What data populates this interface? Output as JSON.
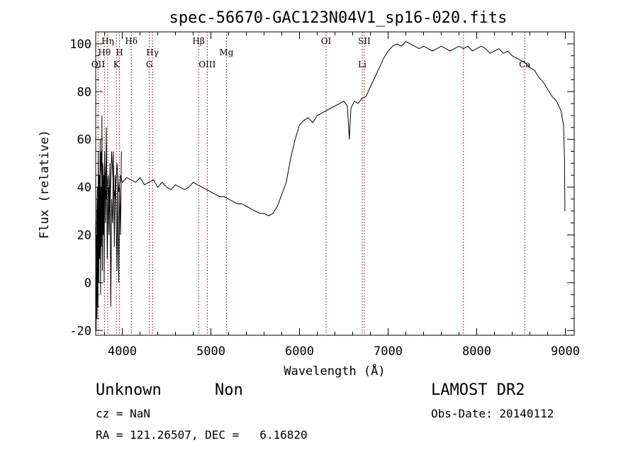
{
  "info": {
    "class_text": "Unknown",
    "subclass_text": "Non",
    "survey_text": "LAMOST DR2",
    "cz_text": "cz = NaN",
    "obs_date_text": "Obs-Date: 20140112",
    "radec_text": "RA = 121.26507, DEC =   6.16820"
  },
  "chart_data": {
    "type": "line",
    "title": "spec-56670-GAC123N04V1_sp16-020.fits",
    "xlabel": "Wavelength (Å)",
    "ylabel": "Flux (relative)",
    "xlim": [
      3700,
      9100
    ],
    "ylim": [
      -22,
      105
    ],
    "xticks": [
      4000,
      5000,
      6000,
      7000,
      8000,
      9000
    ],
    "yticks": [
      -20,
      0,
      20,
      40,
      60,
      80,
      100
    ],
    "grid": false,
    "line_color": "#000000",
    "marker_color": "#8b0000",
    "spectral_lines": [
      {
        "label": "OII",
        "x": 3727,
        "row": 3
      },
      {
        "label": "Hθ",
        "x": 3798,
        "row": 2
      },
      {
        "label": "Hη",
        "x": 3835,
        "row": 1
      },
      {
        "label": "K",
        "x": 3934,
        "row": 3
      },
      {
        "label": "H",
        "x": 3969,
        "row": 2
      },
      {
        "label": "Hδ",
        "x": 4102,
        "row": 1
      },
      {
        "label": "G",
        "x": 4305,
        "row": 3
      },
      {
        "label": "Hγ",
        "x": 4341,
        "row": 2
      },
      {
        "label": "Hβ",
        "x": 4861,
        "row": 1
      },
      {
        "label": "OIII",
        "x": 4959,
        "row": 3
      },
      {
        "label": "Mg",
        "x": 5175,
        "row": 2
      },
      {
        "label": "OI",
        "x": 6300,
        "row": 1
      },
      {
        "label": "Li",
        "x": 6708,
        "row": 3
      },
      {
        "label": "SII",
        "x": 6731,
        "row": 1
      },
      {
        "label": "",
        "x": 7850,
        "row": 0
      },
      {
        "label": "Ca",
        "x": 8542,
        "row": 3
      }
    ],
    "series": [
      {
        "x": [
          3700,
          3720,
          3740,
          3760,
          3780,
          3800,
          3820,
          3840,
          3860,
          3880,
          3900,
          3920,
          3940,
          3960,
          3980,
          4000,
          4050,
          4100,
          4150,
          4200,
          4250,
          4300,
          4350,
          4400,
          4450,
          4500,
          4550,
          4600,
          4650,
          4700,
          4750,
          4800,
          4850,
          4900,
          4950,
          5000,
          5050,
          5100,
          5150,
          5200,
          5250,
          5300,
          5350,
          5400,
          5450,
          5500,
          5550,
          5600,
          5650,
          5700,
          5750,
          5800,
          5850,
          5900,
          5950,
          6000,
          6050,
          6100,
          6150,
          6200,
          6250,
          6300,
          6350,
          6400,
          6450,
          6500,
          6540,
          6562,
          6580,
          6620,
          6660,
          6700,
          6750,
          6800,
          6850,
          6900,
          6950,
          7000,
          7050,
          7100,
          7150,
          7200,
          7250,
          7300,
          7350,
          7400,
          7450,
          7500,
          7550,
          7600,
          7650,
          7700,
          7750,
          7800,
          7850,
          7900,
          7950,
          8000,
          8050,
          8100,
          8150,
          8200,
          8250,
          8300,
          8350,
          8400,
          8450,
          8500,
          8550,
          8600,
          8650,
          8700,
          8750,
          8800,
          8850,
          8900,
          8950,
          8980,
          8990,
          8995
        ],
        "y": [
          10,
          40,
          30,
          55,
          25,
          50,
          35,
          45,
          30,
          55,
          40,
          35,
          50,
          38,
          45,
          42,
          44,
          43,
          42,
          44,
          41,
          42,
          43,
          40,
          42,
          40,
          39,
          41,
          40,
          39,
          40,
          42,
          41,
          40,
          39,
          38,
          37,
          36,
          36,
          35,
          34,
          33,
          33,
          32,
          31,
          30,
          29,
          29,
          28,
          29,
          32,
          37,
          42,
          52,
          60,
          66,
          68,
          69,
          67,
          70,
          71,
          72,
          73,
          74,
          75,
          76,
          74,
          60,
          73,
          76,
          75,
          77,
          78,
          82,
          86,
          90,
          94,
          97,
          99,
          100,
          99,
          101,
          100,
          99,
          98,
          99,
          98,
          97,
          98,
          99,
          98,
          97,
          98,
          99,
          98,
          99,
          97,
          98,
          99,
          98,
          96,
          97,
          98,
          96,
          97,
          95,
          94,
          93,
          92,
          90,
          89,
          86,
          84,
          81,
          78,
          76,
          72,
          66,
          52,
          30
        ],
        "extra_noise": [
          {
            "x": [
              3700,
              3705,
              3710,
              3715,
              3720,
              3725,
              3730,
              3735,
              3740,
              3745,
              3750,
              3755,
              3760,
              3765,
              3770,
              3775,
              3780,
              3785,
              3790,
              3795,
              3800,
              3810,
              3820,
              3830,
              3840,
              3850,
              3860,
              3870,
              3880,
              3890,
              3900,
              3910,
              3920,
              3930,
              3940,
              3950,
              3960,
              3970,
              3980,
              3990
            ],
            "y": [
              0,
              -20,
              20,
              -15,
              35,
              -10,
              55,
              0,
              45,
              10,
              60,
              -5,
              40,
              15,
              70,
              5,
              50,
              20,
              45,
              0,
              55,
              25,
              65,
              10,
              40,
              20,
              50,
              -10,
              35,
              25,
              55,
              15,
              45,
              30,
              5,
              45,
              0,
              40,
              20,
              55
            ]
          }
        ]
      }
    ]
  }
}
